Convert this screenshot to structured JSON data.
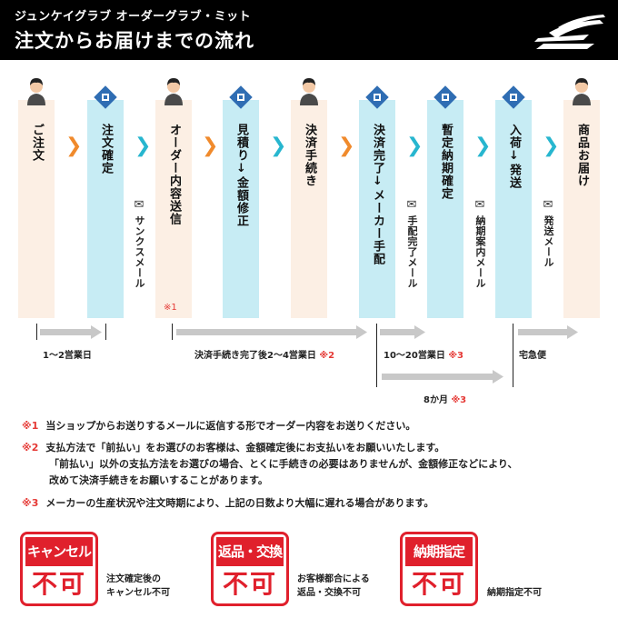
{
  "header": {
    "brand": "ジュンケイグラブ オーダーグラブ・ミット",
    "title": "注文からお届けまでの流れ"
  },
  "steps": [
    {
      "label": "ご注文",
      "role": "customer"
    },
    {
      "label": "注文確定",
      "role": "shop"
    },
    {
      "label": "オーダー内容送信",
      "role": "customer"
    },
    {
      "label": "見積り↓金額修正",
      "role": "shop"
    },
    {
      "label": "決済手続き",
      "role": "customer"
    },
    {
      "label": "決済完了↓メーカー手配",
      "role": "shop"
    },
    {
      "label": "暫定納期確定",
      "role": "shop"
    },
    {
      "label": "入荷↓発送",
      "role": "shop"
    },
    {
      "label": "商品お届け",
      "role": "customer"
    }
  ],
  "mails": {
    "thanks": "サンクスメール",
    "arranged": "手配完了メール",
    "delivery_info": "納期案内メール",
    "shipped": "発送メール"
  },
  "note_marker_1": "※1",
  "timeline": {
    "seg1": "1〜2営業日",
    "seg2": "決済手続き完了後2〜4営業日",
    "seg2_mark": "※2",
    "seg3": "10〜20営業日",
    "seg3_mark": "※3",
    "seg4": "宅急便",
    "seg5": "8か月",
    "seg5_mark": "※3"
  },
  "notes": {
    "n1_mark": "※1",
    "n1": "当ショップからお送りするメールに返信する形でオーダー内容をお送りください。",
    "n2_mark": "※2",
    "n2_line1": "支払方法で「前払い」をお選びのお客様は、金額確定後にお支払いをお願いいたします。",
    "n2_line2": "「前払い」以外の支払方法をお選びの場合、とくに手続きの必要はありませんが、金額修正などにより、",
    "n2_line3": "改めて決済手続きをお願いすることがあります。",
    "n3_mark": "※3",
    "n3": "メーカーの生産状況や注文時期により、上記の日数より大幅に遅れる場合があります。"
  },
  "stamps": [
    {
      "top": "キャンセル",
      "bottom": "不可",
      "caption_1": "注文確定後の",
      "caption_2": "キャンセル不可"
    },
    {
      "top": "返品・交換",
      "bottom": "不可",
      "caption_1": "お客様都合による",
      "caption_2": "返品・交換不可"
    },
    {
      "top": "納期指定",
      "bottom": "不可",
      "caption_1": "納期指定不可",
      "caption_2": ""
    }
  ],
  "colors": {
    "header_bg": "#000000",
    "customer_col": "#fcefe4",
    "shop_col": "#c7ecf4",
    "orange_arrow": "#f08a2c",
    "cyan_arrow": "#27b6cf",
    "stamp_red": "#e0202c",
    "note_red": "#e53935",
    "timeline_gray": "#c8c8c8"
  }
}
